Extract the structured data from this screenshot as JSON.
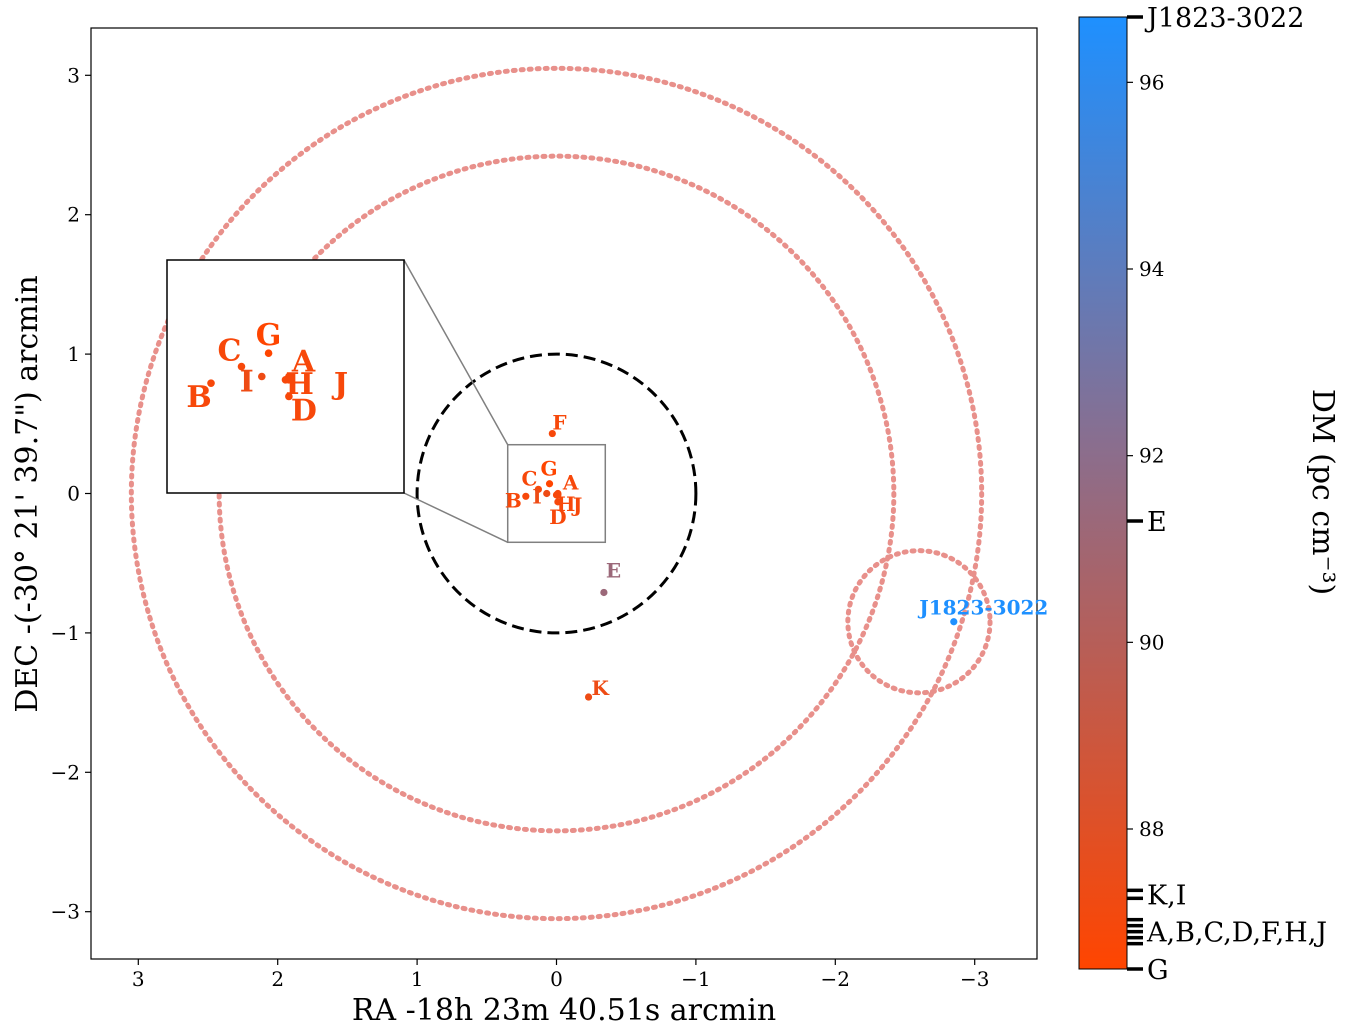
{
  "chart_data": {
    "type": "scatter",
    "xlabel": "RA -18h 23m 40.51s arcmin",
    "ylabel": "DEC -(-30° 21' 39.7\") arcmin",
    "xlim": [
      3.35,
      -3.45
    ],
    "ylim": [
      -3.35,
      3.35
    ],
    "xticks": [
      3,
      2,
      1,
      0,
      -1,
      -2,
      -3
    ],
    "yticks": [
      3,
      2,
      1,
      0,
      -1,
      -2,
      -3
    ],
    "xtick_labels": [
      "3",
      "2",
      "1",
      "0",
      "−1",
      "−2",
      "−3"
    ],
    "ytick_labels": [
      "3",
      "2",
      "1",
      "0",
      "−1",
      "−2",
      "−3"
    ],
    "points": [
      {
        "name": "A",
        "x": -0.01,
        "y": 0.0,
        "dm": 86.9
      },
      {
        "name": "B",
        "x": 0.22,
        "y": -0.02,
        "dm": 86.9
      },
      {
        "name": "C",
        "x": 0.13,
        "y": 0.03,
        "dm": 86.9
      },
      {
        "name": "D",
        "x": -0.01,
        "y": -0.06,
        "dm": 86.9
      },
      {
        "name": "F",
        "x": 0.03,
        "y": 0.43,
        "dm": 86.9
      },
      {
        "name": "G",
        "x": 0.05,
        "y": 0.07,
        "dm": 86.5
      },
      {
        "name": "H",
        "x": 0.0,
        "y": -0.01,
        "dm": 86.9
      },
      {
        "name": "I",
        "x": 0.07,
        "y": 0.0,
        "dm": 87.3
      },
      {
        "name": "J",
        "x": -0.01,
        "y": -0.01,
        "dm": 86.9
      },
      {
        "name": "E",
        "x": -0.34,
        "y": -0.71,
        "dm": 91.3
      },
      {
        "name": "K",
        "x": -0.23,
        "y": -1.46,
        "dm": 87.3
      },
      {
        "name": "J1823-3022",
        "x": -2.85,
        "y": -0.92,
        "dm": 96.7
      }
    ],
    "circles": [
      {
        "cx": 0,
        "cy": 0,
        "r": 1.0,
        "style": "dashed",
        "color": "#000000"
      },
      {
        "cx": 0,
        "cy": 0,
        "r": 2.42,
        "style": "dotted",
        "color": "#e8908b"
      },
      {
        "cx": 0,
        "cy": 0,
        "r": 3.05,
        "style": "dotted",
        "color": "#e8908b"
      },
      {
        "cx": -2.6,
        "cy": -0.92,
        "r": 0.51,
        "style": "dotted",
        "color": "#e8908b"
      }
    ],
    "inset": {
      "source_xlim": [
        0.35,
        -0.35
      ],
      "source_ylim": [
        -0.35,
        0.35
      ],
      "labels": [
        "A",
        "B",
        "C",
        "D",
        "G",
        "H",
        "I",
        "J"
      ]
    },
    "colorbar": {
      "label": "DM (pc cm⁻³)",
      "min": 86.5,
      "max": 96.7,
      "ticks": [
        88,
        90,
        92,
        94,
        96
      ],
      "tick_labels": [
        "88",
        "90",
        "92",
        "94",
        "96"
      ],
      "color_low": "#ff4500",
      "color_mid": "#8a6e8e",
      "color_high": "#1e90ff",
      "marks": [
        {
          "label": "J1823-3022",
          "dm": 96.7
        },
        {
          "label": "E",
          "dm": 91.3
        },
        {
          "label": "K,I",
          "dm": 87.3
        },
        {
          "label": "A,B,C,D,F,H,J",
          "dm": 86.9
        },
        {
          "label": "G",
          "dm": 86.5
        }
      ]
    }
  }
}
